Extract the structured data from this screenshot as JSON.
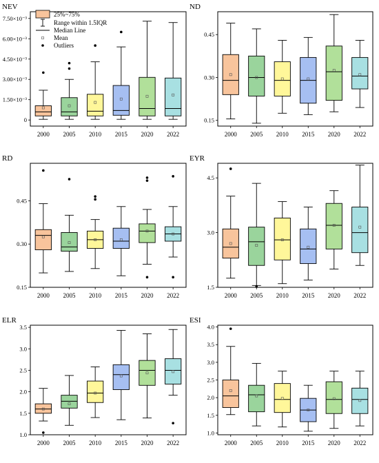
{
  "legend": {
    "box_label": "25%~75%",
    "range_label": "Range within 1.5IQR",
    "median_label": "Median Line",
    "mean_label": "Mean",
    "outliers_label": "Outliers"
  },
  "colors": [
    "#f8c49c",
    "#9ad49c",
    "#fff79a",
    "#a6bff2",
    "#b1e09a",
    "#a8e0e2"
  ],
  "chart_data": [
    {
      "type": "box",
      "title": "NEV",
      "categories": [
        "2000",
        "2005",
        "2010",
        "2015",
        "2020",
        "2022"
      ],
      "ylim": [
        -0.45,
        8.0
      ],
      "yticks": [
        0,
        1.5,
        3.0,
        4.5,
        6.0,
        7.5
      ],
      "ytick_labels": [
        "0",
        "1.50×10⁻³",
        "3.00×10⁻³",
        "4.50×10⁻³",
        "6.00×10⁻³",
        "7.50×10⁻³"
      ],
      "boxes": [
        {
          "min": 0.05,
          "q1": 0.3,
          "median": 0.6,
          "q3": 1.05,
          "max": 2.2,
          "mean": 0.9,
          "outliers": [
            3.5
          ]
        },
        {
          "min": 0.05,
          "q1": 0.3,
          "median": 0.6,
          "q3": 1.65,
          "max": 3.0,
          "mean": 1.05,
          "outliers": [
            3.8,
            4.2
          ]
        },
        {
          "min": 0.05,
          "q1": 0.3,
          "median": 0.65,
          "q3": 1.9,
          "max": 4.3,
          "mean": 1.3,
          "outliers": [
            5.5
          ]
        },
        {
          "min": 0.05,
          "q1": 0.35,
          "median": 0.7,
          "q3": 2.55,
          "max": 5.4,
          "mean": 1.55,
          "outliers": [
            6.5
          ]
        },
        {
          "min": 0.05,
          "q1": 0.3,
          "median": 0.85,
          "q3": 3.15,
          "max": 7.3,
          "mean": 1.75,
          "outliers": []
        },
        {
          "min": 0.05,
          "q1": 0.3,
          "median": 0.85,
          "q3": 3.1,
          "max": 7.2,
          "mean": 1.85,
          "outliers": []
        }
      ]
    },
    {
      "type": "box",
      "title": "ND",
      "categories": [
        "2000",
        "2005",
        "2010",
        "2015",
        "2020",
        "2022"
      ],
      "ylim": [
        0.13,
        0.53
      ],
      "yticks": [
        0.15,
        0.3,
        0.45
      ],
      "ytick_labels": [
        "0.15",
        "0.30",
        "0.45"
      ],
      "boxes": [
        {
          "min": 0.155,
          "q1": 0.24,
          "median": 0.29,
          "q3": 0.38,
          "max": 0.49,
          "mean": 0.31,
          "outliers": []
        },
        {
          "min": 0.14,
          "q1": 0.235,
          "median": 0.3,
          "q3": 0.375,
          "max": 0.47,
          "mean": 0.3,
          "outliers": []
        },
        {
          "min": 0.175,
          "q1": 0.235,
          "median": 0.29,
          "q3": 0.355,
          "max": 0.43,
          "mean": 0.295,
          "outliers": []
        },
        {
          "min": 0.17,
          "q1": 0.21,
          "median": 0.29,
          "q3": 0.37,
          "max": 0.44,
          "mean": 0.295,
          "outliers": []
        },
        {
          "min": 0.18,
          "q1": 0.22,
          "median": 0.32,
          "q3": 0.41,
          "max": 0.52,
          "mean": 0.325,
          "outliers": []
        },
        {
          "min": 0.195,
          "q1": 0.26,
          "median": 0.305,
          "q3": 0.37,
          "max": 0.43,
          "mean": 0.31,
          "outliers": []
        }
      ]
    },
    {
      "type": "box",
      "title": "RD",
      "categories": [
        "2000",
        "2005",
        "2010",
        "2015",
        "2020",
        "2022"
      ],
      "ylim": [
        0.15,
        0.58
      ],
      "yticks": [
        0.15,
        0.3,
        0.45
      ],
      "ytick_labels": [
        "0.15",
        "0.30",
        "0.45"
      ],
      "boxes": [
        {
          "min": 0.2,
          "q1": 0.28,
          "median": 0.33,
          "q3": 0.35,
          "max": 0.44,
          "mean": 0.325,
          "outliers": [
            0.555
          ]
        },
        {
          "min": 0.205,
          "q1": 0.275,
          "median": 0.29,
          "q3": 0.34,
          "max": 0.4,
          "mean": 0.305,
          "outliers": [
            0.525
          ]
        },
        {
          "min": 0.215,
          "q1": 0.285,
          "median": 0.315,
          "q3": 0.345,
          "max": 0.385,
          "mean": 0.315,
          "outliers": [
            0.455,
            0.465
          ]
        },
        {
          "min": 0.19,
          "q1": 0.285,
          "median": 0.31,
          "q3": 0.355,
          "max": 0.43,
          "mean": 0.315,
          "outliers": []
        },
        {
          "min": 0.23,
          "q1": 0.305,
          "median": 0.345,
          "q3": 0.37,
          "max": 0.42,
          "mean": 0.345,
          "outliers": [
            0.52,
            0.53,
            0.185
          ]
        },
        {
          "min": 0.255,
          "q1": 0.31,
          "median": 0.335,
          "q3": 0.36,
          "max": 0.43,
          "mean": 0.335,
          "outliers": [
            0.535,
            0.185
          ]
        }
      ]
    },
    {
      "type": "box",
      "title": "EYR",
      "categories": [
        "2000",
        "2005",
        "2010",
        "2015",
        "2020",
        "2022"
      ],
      "ylim": [
        1.5,
        4.9
      ],
      "yticks": [
        1.5,
        3.0,
        4.5
      ],
      "ytick_labels": [
        "1.5",
        "3.0",
        "4.5"
      ],
      "boxes": [
        {
          "min": 1.75,
          "q1": 2.3,
          "median": 2.6,
          "q3": 3.1,
          "max": 4.0,
          "mean": 2.7,
          "outliers": [
            4.75
          ]
        },
        {
          "min": 1.55,
          "q1": 2.1,
          "median": 2.75,
          "q3": 3.15,
          "max": 4.35,
          "mean": 2.65,
          "outliers": [
            1.52
          ]
        },
        {
          "min": 1.6,
          "q1": 2.25,
          "median": 2.8,
          "q3": 3.4,
          "max": 3.85,
          "mean": 2.8,
          "outliers": []
        },
        {
          "min": 1.7,
          "q1": 2.15,
          "median": 2.55,
          "q3": 3.1,
          "max": 3.7,
          "mean": 2.6,
          "outliers": []
        },
        {
          "min": 2.0,
          "q1": 2.55,
          "median": 3.2,
          "q3": 3.8,
          "max": 4.15,
          "mean": 3.2,
          "outliers": []
        },
        {
          "min": 2.1,
          "q1": 2.45,
          "median": 3.0,
          "q3": 3.7,
          "max": 4.85,
          "mean": 3.15,
          "outliers": []
        }
      ]
    },
    {
      "type": "box",
      "title": "ELR",
      "categories": [
        "2000",
        "2005",
        "2010",
        "2015",
        "2020",
        "2022"
      ],
      "ylim": [
        1.0,
        3.55
      ],
      "yticks": [
        1.0,
        1.5,
        2.0,
        2.5,
        3.0,
        3.5
      ],
      "ytick_labels": [
        "1.0",
        "1.5",
        "2.0",
        "2.5",
        "3.0",
        "3.5"
      ],
      "boxes": [
        {
          "min": 1.32,
          "q1": 1.5,
          "median": 1.6,
          "q3": 1.72,
          "max": 2.08,
          "mean": 1.6,
          "outliers": [
            1.05
          ]
        },
        {
          "min": 1.22,
          "q1": 1.62,
          "median": 1.78,
          "q3": 1.92,
          "max": 2.38,
          "mean": 1.72,
          "outliers": []
        },
        {
          "min": 1.4,
          "q1": 1.75,
          "median": 1.97,
          "q3": 2.25,
          "max": 2.58,
          "mean": 1.97,
          "outliers": []
        },
        {
          "min": 1.35,
          "q1": 2.05,
          "median": 2.4,
          "q3": 2.63,
          "max": 3.43,
          "mean": 2.37,
          "outliers": []
        },
        {
          "min": 1.39,
          "q1": 2.15,
          "median": 2.5,
          "q3": 2.73,
          "max": 3.35,
          "mean": 2.44,
          "outliers": []
        },
        {
          "min": 1.92,
          "q1": 2.18,
          "median": 2.5,
          "q3": 2.77,
          "max": 3.45,
          "mean": 2.47,
          "outliers": [
            1.27
          ]
        }
      ]
    },
    {
      "type": "box",
      "title": "ESI",
      "categories": [
        "2000",
        "2005",
        "2010",
        "2015",
        "2020",
        "2022"
      ],
      "ylim": [
        0.95,
        4.05
      ],
      "yticks": [
        1.0,
        1.5,
        2.0,
        2.5,
        3.0,
        3.5,
        4.0
      ],
      "ytick_labels": [
        "1.0",
        "1.5",
        "2.0",
        "2.5",
        "3.0",
        "3.5",
        "4.0"
      ],
      "boxes": [
        {
          "min": 1.52,
          "q1": 1.72,
          "median": 2.05,
          "q3": 2.5,
          "max": 3.45,
          "mean": 2.2,
          "outliers": [
            3.95
          ]
        },
        {
          "min": 1.2,
          "q1": 1.6,
          "median": 2.08,
          "q3": 2.35,
          "max": 2.97,
          "mean": 2.05,
          "outliers": []
        },
        {
          "min": 1.17,
          "q1": 1.58,
          "median": 1.95,
          "q3": 2.4,
          "max": 2.75,
          "mean": 1.98,
          "outliers": []
        },
        {
          "min": 1.05,
          "q1": 1.32,
          "median": 1.65,
          "q3": 1.98,
          "max": 2.35,
          "mean": 1.65,
          "outliers": []
        },
        {
          "min": 1.13,
          "q1": 1.55,
          "median": 1.95,
          "q3": 2.45,
          "max": 2.75,
          "mean": 1.97,
          "outliers": []
        },
        {
          "min": 1.2,
          "q1": 1.55,
          "median": 1.95,
          "q3": 2.27,
          "max": 2.75,
          "mean": 1.92,
          "outliers": []
        }
      ]
    }
  ]
}
